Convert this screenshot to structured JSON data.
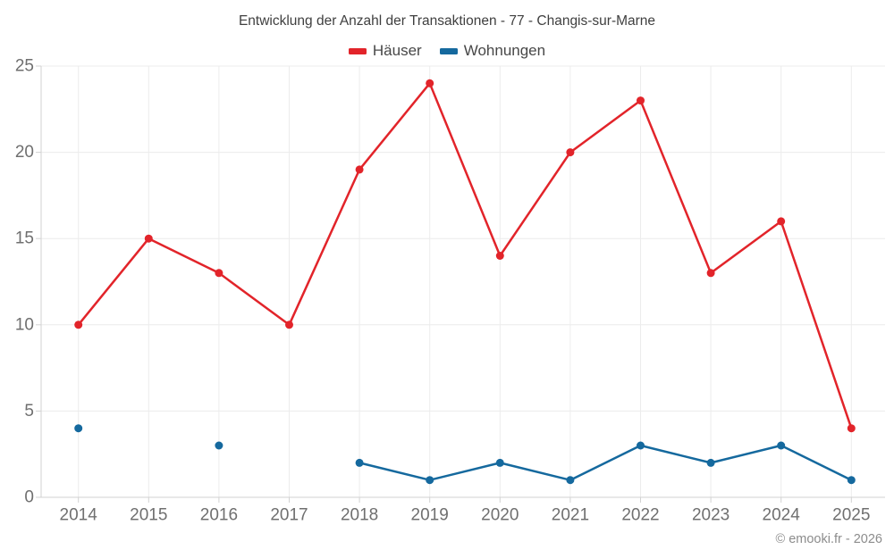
{
  "header": {
    "title": "Entwicklung der Anzahl der Transaktionen - 77 - Changis-sur-Marne"
  },
  "legend": {
    "items": [
      {
        "label": "Häuser",
        "color": "#e2242a"
      },
      {
        "label": "Wohnungen",
        "color": "#15699e"
      }
    ]
  },
  "footer": {
    "copyright": "© emooki.fr - 2026"
  },
  "chart_data": {
    "type": "line",
    "title": "Entwicklung der Anzahl der Transaktionen - 77 - Changis-sur-Marne",
    "x": [
      "2014",
      "2015",
      "2016",
      "2017",
      "2018",
      "2019",
      "2020",
      "2021",
      "2022",
      "2023",
      "2024",
      "2025"
    ],
    "series": [
      {
        "name": "Häuser",
        "color": "#e2242a",
        "values": [
          10,
          15,
          13,
          10,
          19,
          24,
          14,
          20,
          23,
          13,
          16,
          4
        ]
      },
      {
        "name": "Wohnungen",
        "color": "#15699e",
        "values": [
          4,
          null,
          3,
          null,
          2,
          1,
          2,
          1,
          3,
          2,
          3,
          1
        ]
      }
    ],
    "xlabel": "",
    "ylabel": "",
    "ylim": [
      0,
      25
    ],
    "yticks": [
      0,
      5,
      10,
      15,
      20,
      25
    ],
    "grid": true,
    "legend_position": "top",
    "styles": {
      "grid_color": "#ececec",
      "axis_color": "#d2d2d2",
      "tick_label_color": "#6f6f6f",
      "tick_label_size": 19,
      "marker_radius": 4.5,
      "line_width": 2.5
    }
  }
}
